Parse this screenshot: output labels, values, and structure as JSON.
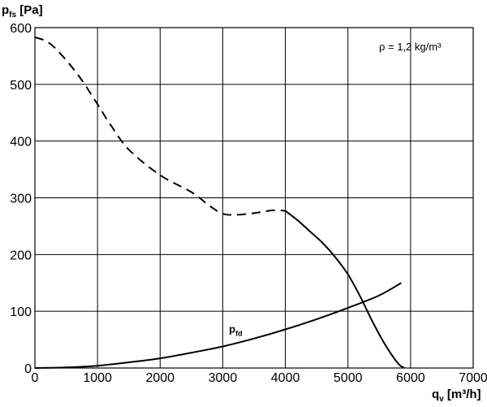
{
  "chart_data": {
    "type": "line",
    "ylabel": {
      "main": "p",
      "sub": "fs",
      "unit": " [Pa]"
    },
    "xlabel": {
      "main": "q",
      "sub": "v",
      "unit": " [m³/h]"
    },
    "annotation": "ρ = 1,2 kg/m³",
    "xlim": [
      0,
      7000
    ],
    "ylim": [
      0,
      600
    ],
    "xticks": [
      0,
      1000,
      2000,
      3000,
      4000,
      5000,
      6000,
      7000
    ],
    "yticks": [
      0,
      100,
      200,
      300,
      400,
      500,
      600
    ],
    "grid": true,
    "series": [
      {
        "role": "fan-static-pressure-unstable",
        "style": "dashed",
        "color": "#000000",
        "x": [
          0,
          200,
          400,
          700,
          1000,
          1200,
          1500,
          2000,
          2500,
          2800,
          3000,
          3200,
          3500,
          3800,
          4000
        ],
        "y": [
          583,
          575,
          555,
          515,
          465,
          430,
          385,
          340,
          310,
          285,
          272,
          270,
          273,
          278,
          277
        ]
      },
      {
        "role": "fan-static-pressure-stable",
        "style": "solid",
        "color": "#000000",
        "x": [
          4000,
          4200,
          4400,
          4600,
          4800,
          5000,
          5200,
          5400,
          5600,
          5800,
          5900
        ],
        "y": [
          277,
          260,
          240,
          220,
          195,
          165,
          125,
          80,
          40,
          8,
          0
        ]
      },
      {
        "role": "dynamic-pressure",
        "label_main": "p",
        "label_sub": "fd",
        "label_at": [
          3100,
          62
        ],
        "style": "solid",
        "color": "#000000",
        "x": [
          0,
          500,
          1000,
          1500,
          2000,
          2500,
          3000,
          3500,
          4000,
          4500,
          5000,
          5500,
          5850
        ],
        "y": [
          0,
          1,
          4,
          10,
          17,
          27,
          38,
          52,
          68,
          86,
          106,
          128,
          150
        ]
      }
    ]
  }
}
